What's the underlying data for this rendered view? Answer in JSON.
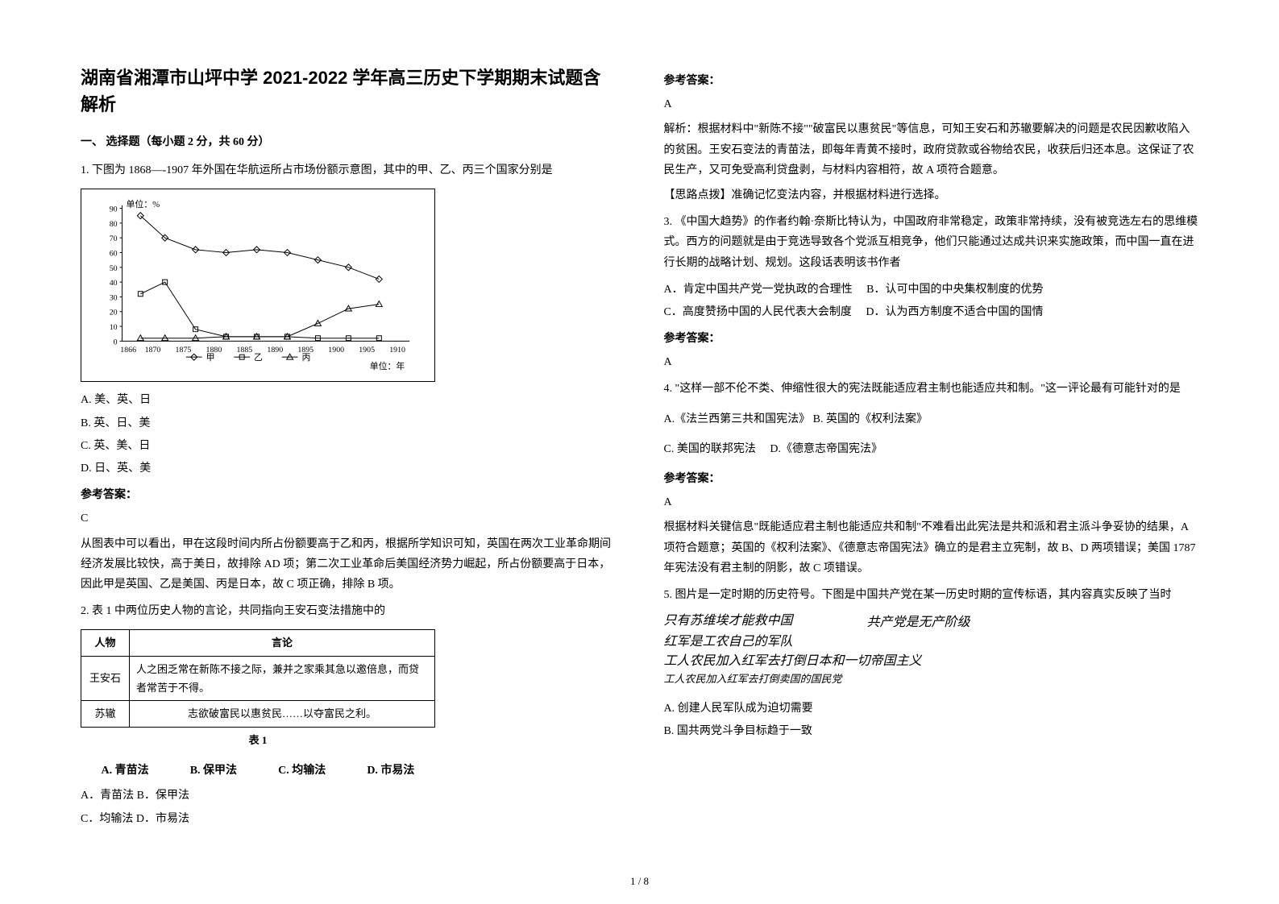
{
  "title": "湖南省湘潭市山坪中学 2021-2022 学年高三历史下学期期末试题含解析",
  "section1_heading": "一、 选择题（每小题 2 分，共 60 分）",
  "q1": {
    "stem": "1. 下图为 1868—-1907 年外国在华航运所占市场份额示意图，其中的甲、乙、丙三个国家分别是",
    "chart": {
      "type": "line",
      "xticks": [
        1866,
        1870,
        1875,
        1880,
        1885,
        1890,
        1895,
        1900,
        1905,
        1910
      ],
      "yticks": [
        0,
        10,
        20,
        30,
        40,
        50,
        60,
        70,
        80,
        90
      ],
      "y_unit_label": "单位：%",
      "x_unit_label": "单位：年",
      "legend": [
        "甲",
        "乙",
        "丙"
      ],
      "legend_markers": [
        "diamond",
        "square",
        "triangle"
      ],
      "series": {
        "jia": {
          "marker": "diamond",
          "points": [
            [
              1868,
              85
            ],
            [
              1872,
              70
            ],
            [
              1877,
              62
            ],
            [
              1882,
              60
            ],
            [
              1887,
              62
            ],
            [
              1892,
              60
            ],
            [
              1897,
              55
            ],
            [
              1902,
              50
            ],
            [
              1907,
              42
            ]
          ]
        },
        "yi": {
          "marker": "square",
          "points": [
            [
              1868,
              32
            ],
            [
              1872,
              40
            ],
            [
              1877,
              8
            ],
            [
              1882,
              3
            ],
            [
              1887,
              3
            ],
            [
              1892,
              3
            ],
            [
              1897,
              2
            ],
            [
              1902,
              2
            ],
            [
              1907,
              2
            ]
          ]
        },
        "bing": {
          "marker": "triangle",
          "points": [
            [
              1868,
              2
            ],
            [
              1872,
              2
            ],
            [
              1877,
              2
            ],
            [
              1882,
              3
            ],
            [
              1887,
              3
            ],
            [
              1892,
              3
            ],
            [
              1897,
              12
            ],
            [
              1902,
              22
            ],
            [
              1907,
              25
            ]
          ]
        }
      },
      "line_color": "#000000",
      "grid": false,
      "background": "#ffffff",
      "xlim": [
        1865,
        1912
      ],
      "ylim": [
        0,
        92
      ]
    },
    "options": {
      "A": "A. 美、英、日",
      "B": "B. 英、日、美",
      "C": "C. 英、美、日",
      "D": "D. 日、英、美"
    },
    "answer_label": "参考答案：",
    "answer": "C",
    "explanation": "从图表中可以看出，甲在这段时间内所占份额要高于乙和丙，根据所学知识可知，英国在两次工业革命期间经济发展比较快，高于美日，故排除 AD 项；第二次工业革命后美国经济势力崛起，所占份额要高于日本，因此甲是英国、乙是美国、丙是日本，故 C 项正确，排除 B 项。"
  },
  "q2": {
    "stem": "2. 表 1 中两位历史人物的言论，共同指向王安石变法措施中的",
    "table": {
      "header": [
        "人物",
        "言论"
      ],
      "rows": [
        [
          "王安石",
          "人之困乏常在新陈不接之际，兼并之家乘其急以邀倍息，而贷者常苦于不得。"
        ],
        [
          "苏辙",
          "志欲破富民以惠贫民……以夺富民之利。"
        ]
      ],
      "caption": "表 1"
    },
    "inline_options": {
      "A": "A. 青苗法",
      "B": "B. 保甲法",
      "C": "C. 均输法",
      "D": "D. 市易法"
    },
    "options_text": {
      "line1": "A．青苗法 B．保甲法",
      "line2": "C．均输法 D．市易法"
    },
    "answer_label": "参考答案：",
    "answer": "A",
    "explanation": "解析：根据材料中\"新陈不接\"\"破富民以惠贫民\"等信息，可知王安石和苏辙要解决的问题是农民因歉收陷入的贫困。王安石变法的青苗法，即每年青黄不接时，政府贷款或谷物给农民，收获后归还本息。这保证了农民生产，又可免受高利贷盘剥，与材料内容相符，故 A 项符合题意。",
    "tip": "【思路点拨】准确记忆变法内容，并根据材料进行选择。"
  },
  "q3": {
    "stem": "3. 《中国大趋势》的作者约翰·奈斯比特认为，中国政府非常稳定，政策非常持续，没有被竞选左右的思维模式。西方的问题就是由于竞选导致各个党派互相竞争，他们只能通过达成共识来实施政策，而中国一直在进行长期的战略计划、规划。这段话表明该书作者",
    "options": {
      "A": "A．肯定中国共产党一党执政的合理性",
      "B": "B．认可中国的中央集权制度的优势",
      "C": "C．高度赞扬中国的人民代表大会制度",
      "D": "D．认为西方制度不适合中国的国情"
    },
    "answer_label": "参考答案：",
    "answer": "A"
  },
  "q4": {
    "stem": "4. \"这样一部不伦不类、伸缩性很大的宪法既能适应君主制也能适应共和制。\"这一评论最有可能针对的是",
    "options": {
      "A": "A.《法兰西第三共和国宪法》",
      "B": "B. 英国的《权利法案》",
      "C": "C. 美国的联邦宪法",
      "D": "D.《德意志帝国宪法》"
    },
    "answer_label": "参考答案：",
    "answer": "A",
    "explanation": "根据材料关键信息\"既能适应君主制也能适应共和制\"不难看出此宪法是共和派和君主派斗争妥协的结果，A 项符合题意；英国的《权利法案》、《德意志帝国宪法》确立的是君主立宪制，故 B、D 两项错误；美国 1787 年宪法没有君主制的阴影，故 C 项错误。"
  },
  "q5": {
    "stem": "5. 图片是一定时期的历史符号。下图是中国共产党在某一历史时期的宣传标语，其内容真实反映了当时",
    "handwriting": {
      "line1": "只有苏维埃才能救中国",
      "line2": "共产党是无产阶级",
      "line3": "红军是工农自己的军队",
      "line4": "工人农民加入红军去打倒日本和一切帝国主义",
      "line5": "工人农民加入红军去打倒卖国的国民党"
    },
    "options": {
      "A": "A. 创建人民军队成为迫切需要",
      "B": "B. 国共两党斗争目标趋于一致"
    }
  },
  "footer": "1 / 8"
}
